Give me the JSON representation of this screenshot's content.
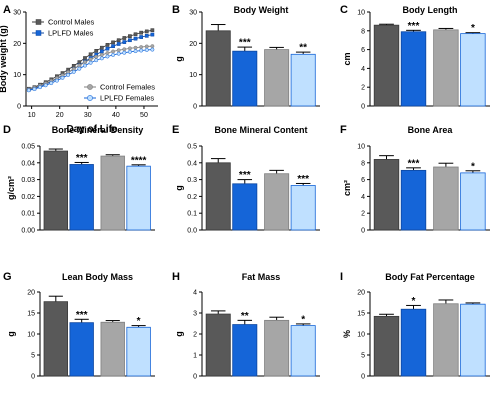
{
  "colors": {
    "control_males": "#595959",
    "lplfd_males": "#1565d8",
    "control_females": "#a6a6a6",
    "lplfd_females": "#bfe0ff",
    "lplfd_females_stroke": "#1565d8"
  },
  "chart_data": [
    {
      "letter": "A",
      "type": "line",
      "title": "",
      "xlabel": "Day of Life",
      "ylabel": "Body weight (g)",
      "xlim": [
        8,
        55
      ],
      "ylim": [
        0,
        30
      ],
      "xticks": [
        "10",
        "20",
        "30",
        "40",
        "50"
      ],
      "yticks": [
        "0",
        "10",
        "20",
        "30"
      ],
      "legend_top": [
        "Control Males",
        "LPLFD Males"
      ],
      "legend_bottom": [
        "Control Females",
        "LPLFD Females"
      ],
      "x": [
        9,
        11,
        13,
        15,
        17,
        19,
        21,
        23,
        25,
        27,
        29,
        31,
        33,
        35,
        37,
        39,
        41,
        43,
        45,
        47,
        49,
        51,
        53
      ],
      "series": [
        {
          "name": "Control Males",
          "values": [
            5.5,
            6,
            6.8,
            7.6,
            8.5,
            9.5,
            10.5,
            11.6,
            12.8,
            14,
            15.3,
            16.5,
            17.6,
            18.6,
            19.5,
            20.3,
            21,
            21.7,
            22.3,
            22.9,
            23.4,
            23.8,
            24.2
          ]
        },
        {
          "name": "LPLFD Males",
          "values": [
            5.2,
            5.6,
            6.3,
            7,
            7.8,
            8.7,
            9.7,
            10.7,
            11.8,
            13,
            14.2,
            15.3,
            16.4,
            17.4,
            18.3,
            19.1,
            19.8,
            20.4,
            21,
            21.5,
            22,
            22.4,
            22.8
          ]
        },
        {
          "name": "Control Females",
          "values": [
            5.3,
            5.8,
            6.5,
            7.2,
            8,
            8.9,
            9.8,
            10.8,
            11.8,
            12.9,
            14,
            14.9,
            15.7,
            16.3,
            16.9,
            17.4,
            17.8,
            18.1,
            18.4,
            18.6,
            18.8,
            19,
            19.1
          ]
        },
        {
          "name": "LPLFD Females",
          "values": [
            5,
            5.4,
            6,
            6.6,
            7.3,
            8.1,
            9,
            9.9,
            10.9,
            11.9,
            12.9,
            13.8,
            14.6,
            15.2,
            15.8,
            16.3,
            16.7,
            17,
            17.3,
            17.5,
            17.7,
            17.9,
            18
          ]
        }
      ]
    },
    {
      "letter": "B",
      "type": "bar",
      "title": "Body Weight",
      "ylabel": "g",
      "ylim": [
        0,
        30
      ],
      "yticks": [
        "0",
        "10",
        "20",
        "30"
      ],
      "series": [
        {
          "name": "Control Males",
          "value": 24,
          "err": 2
        },
        {
          "name": "LPLFD Males",
          "value": 17.5,
          "err": 1.3,
          "sig": "***"
        },
        {
          "name": "Control Females",
          "value": 18,
          "err": 0.7
        },
        {
          "name": "LPLFD Females",
          "value": 16.5,
          "err": 0.7,
          "sig": "**"
        }
      ]
    },
    {
      "letter": "C",
      "type": "bar",
      "title": "Body Length",
      "ylabel": "cm",
      "ylim": [
        0,
        10
      ],
      "yticks": [
        "0",
        "2",
        "4",
        "6",
        "8",
        "10"
      ],
      "series": [
        {
          "name": "Control Males",
          "value": 8.6,
          "err": 0.1
        },
        {
          "name": "LPLFD Males",
          "value": 7.9,
          "err": 0.15,
          "sig": "***"
        },
        {
          "name": "Control Females",
          "value": 8.1,
          "err": 0.15
        },
        {
          "name": "LPLFD Females",
          "value": 7.7,
          "err": 0.1,
          "sig": "*"
        }
      ]
    },
    {
      "letter": "D",
      "type": "bar",
      "title": "Bone Mineral Density",
      "ylabel": "g/cm²",
      "ylim": [
        0,
        0.05
      ],
      "yticks": [
        "0.00",
        "0.01",
        "0.02",
        "0.03",
        "0.04",
        "0.05"
      ],
      "series": [
        {
          "name": "Control Males",
          "value": 0.047,
          "err": 0.0012
        },
        {
          "name": "LPLFD Males",
          "value": 0.039,
          "err": 0.0012,
          "sig": "***"
        },
        {
          "name": "Control Females",
          "value": 0.044,
          "err": 0.0008
        },
        {
          "name": "LPLFD Females",
          "value": 0.038,
          "err": 0.0008,
          "sig": "****"
        }
      ]
    },
    {
      "letter": "E",
      "type": "bar",
      "title": "Bone Mineral Content",
      "ylabel": "g",
      "ylim": [
        0,
        0.5
      ],
      "yticks": [
        "0.0",
        "0.1",
        "0.2",
        "0.3",
        "0.4",
        "0.5"
      ],
      "series": [
        {
          "name": "Control Males",
          "value": 0.4,
          "err": 0.025
        },
        {
          "name": "LPLFD Males",
          "value": 0.275,
          "err": 0.025,
          "sig": "***"
        },
        {
          "name": "Control Females",
          "value": 0.335,
          "err": 0.02
        },
        {
          "name": "LPLFD Females",
          "value": 0.265,
          "err": 0.012,
          "sig": "***"
        }
      ]
    },
    {
      "letter": "F",
      "type": "bar",
      "title": "Bone Area",
      "ylabel": "cm²",
      "ylim": [
        0,
        10
      ],
      "yticks": [
        "0",
        "2",
        "4",
        "6",
        "8",
        "10"
      ],
      "series": [
        {
          "name": "Control Males",
          "value": 8.4,
          "err": 0.45
        },
        {
          "name": "LPLFD Males",
          "value": 7.1,
          "err": 0.3,
          "sig": "***"
        },
        {
          "name": "Control Females",
          "value": 7.5,
          "err": 0.45
        },
        {
          "name": "LPLFD Females",
          "value": 6.8,
          "err": 0.25,
          "sig": "*"
        }
      ]
    },
    {
      "letter": "G",
      "type": "bar",
      "title": "Lean Body Mass",
      "ylabel": "g",
      "ylim": [
        0,
        20
      ],
      "yticks": [
        "0",
        "5",
        "10",
        "15",
        "20"
      ],
      "series": [
        {
          "name": "Control Males",
          "value": 17.7,
          "err": 1.3
        },
        {
          "name": "LPLFD Males",
          "value": 12.7,
          "err": 0.8,
          "sig": "***"
        },
        {
          "name": "Control Females",
          "value": 12.8,
          "err": 0.4
        },
        {
          "name": "LPLFD Females",
          "value": 11.6,
          "err": 0.4,
          "sig": "*"
        }
      ]
    },
    {
      "letter": "H",
      "type": "bar",
      "title": "Fat Mass",
      "ylabel": "g",
      "ylim": [
        0,
        4
      ],
      "yticks": [
        "0",
        "1",
        "2",
        "3",
        "4"
      ],
      "series": [
        {
          "name": "Control Males",
          "value": 2.95,
          "err": 0.15
        },
        {
          "name": "LPLFD Males",
          "value": 2.45,
          "err": 0.2,
          "sig": "**"
        },
        {
          "name": "Control Females",
          "value": 2.65,
          "err": 0.15
        },
        {
          "name": "LPLFD Females",
          "value": 2.4,
          "err": 0.08,
          "sig": "*"
        }
      ]
    },
    {
      "letter": "I",
      "type": "bar",
      "title": "Body Fat Percentage",
      "ylabel": "%",
      "ylim": [
        0,
        20
      ],
      "yticks": [
        "0",
        "5",
        "10",
        "15",
        "20"
      ],
      "series": [
        {
          "name": "Control Males",
          "value": 14.2,
          "err": 0.5
        },
        {
          "name": "LPLFD Males",
          "value": 15.9,
          "err": 0.9,
          "sig": "*"
        },
        {
          "name": "Control Females",
          "value": 17.2,
          "err": 0.9
        },
        {
          "name": "LPLFD Females",
          "value": 17.1,
          "err": 0.3
        }
      ]
    }
  ]
}
